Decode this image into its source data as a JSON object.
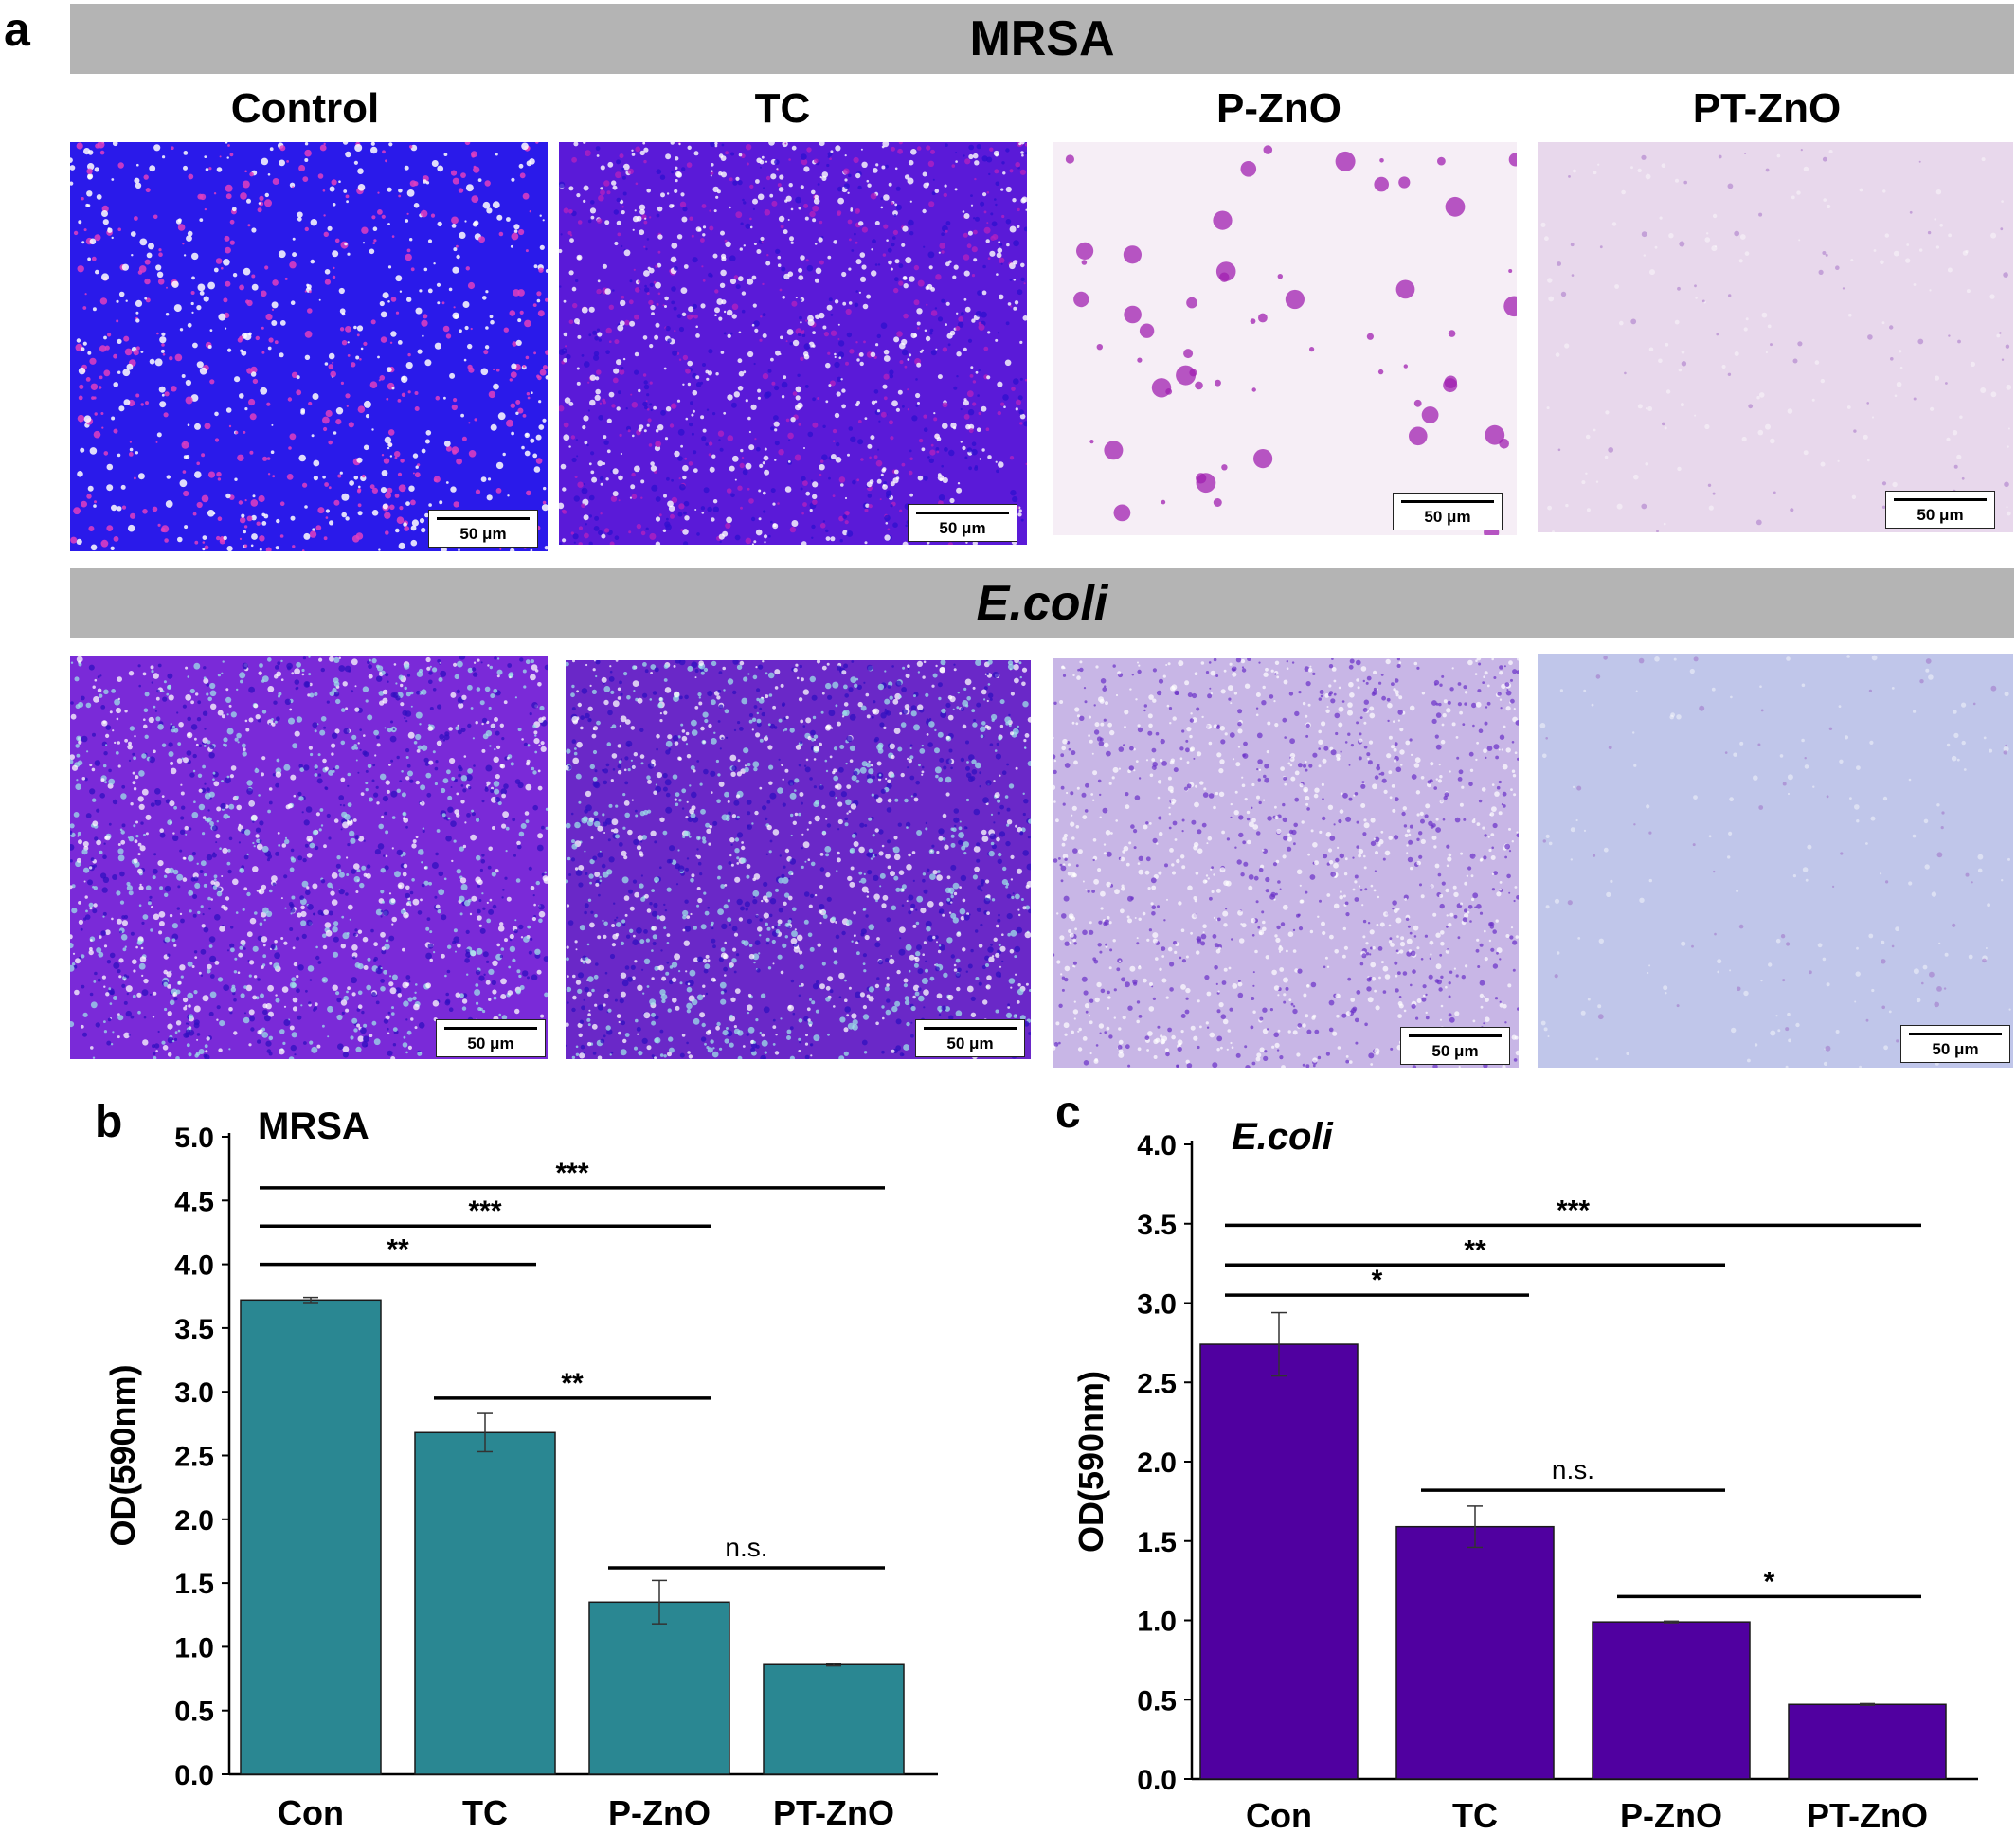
{
  "panel_a": {
    "letter": "a",
    "mrsa_banner": "MRSA",
    "ecoli_banner": "E.coli",
    "columns": [
      "Control",
      "TC",
      "P-ZnO",
      "PT-ZnO"
    ],
    "scale_label": "50 μm",
    "colors": {
      "mrsa": [
        "#2a1aea",
        "#5a1ad8",
        "#f6eef6",
        "#e8d8ec"
      ],
      "ecoli": [
        "#7a2ad8",
        "#6a28c8",
        "#c8b6e6",
        "#c0c6ea"
      ]
    }
  },
  "chart_data": [
    {
      "type": "bar",
      "panel": "b",
      "title": "MRSA",
      "categories": [
        "Con",
        "TC",
        "P-ZnO",
        "PT-ZnO"
      ],
      "values": [
        3.72,
        2.68,
        1.35,
        0.86
      ],
      "errors": [
        0.02,
        0.15,
        0.17,
        0.01
      ],
      "ylabel": "OD(590nm)",
      "ylim": [
        0,
        5.0
      ],
      "yticks": [
        "0.0",
        "0.5",
        "1.0",
        "1.5",
        "2.0",
        "2.5",
        "3.0",
        "3.5",
        "4.0",
        "4.5",
        "5.0"
      ],
      "color": "#2a8792",
      "title_italic": false,
      "significance": [
        {
          "from": 0,
          "to": 3,
          "label": "***",
          "y": 4.6
        },
        {
          "from": 0,
          "to": 2,
          "label": "***",
          "y": 4.3
        },
        {
          "from": 0,
          "to": 1,
          "label": "**",
          "y": 4.0
        },
        {
          "from": 1,
          "to": 2,
          "label": "**",
          "y": 2.95
        },
        {
          "from": 2,
          "to": 3,
          "label": "n.s.",
          "y": 1.62
        }
      ]
    },
    {
      "type": "bar",
      "panel": "c",
      "title": "E.coli",
      "categories": [
        "Con",
        "TC",
        "P-ZnO",
        "PT-ZnO"
      ],
      "values": [
        2.74,
        1.59,
        0.99,
        0.47
      ],
      "errors": [
        0.2,
        0.13,
        0.005,
        0.005
      ],
      "ylabel": "OD(590nm)",
      "ylim": [
        0,
        4.0
      ],
      "yticks": [
        "0.0",
        "0.5",
        "1.0",
        "1.5",
        "2.0",
        "2.5",
        "3.0",
        "3.5",
        "4.0"
      ],
      "color": "#5000a0",
      "title_italic": true,
      "significance": [
        {
          "from": 0,
          "to": 3,
          "label": "***",
          "y": 3.49
        },
        {
          "from": 0,
          "to": 2,
          "label": "**",
          "y": 3.24
        },
        {
          "from": 0,
          "to": 1,
          "label": "*",
          "y": 3.05
        },
        {
          "from": 1,
          "to": 2,
          "label": "n.s.",
          "y": 1.82
        },
        {
          "from": 2,
          "to": 3,
          "label": "*",
          "y": 1.15
        }
      ]
    }
  ]
}
